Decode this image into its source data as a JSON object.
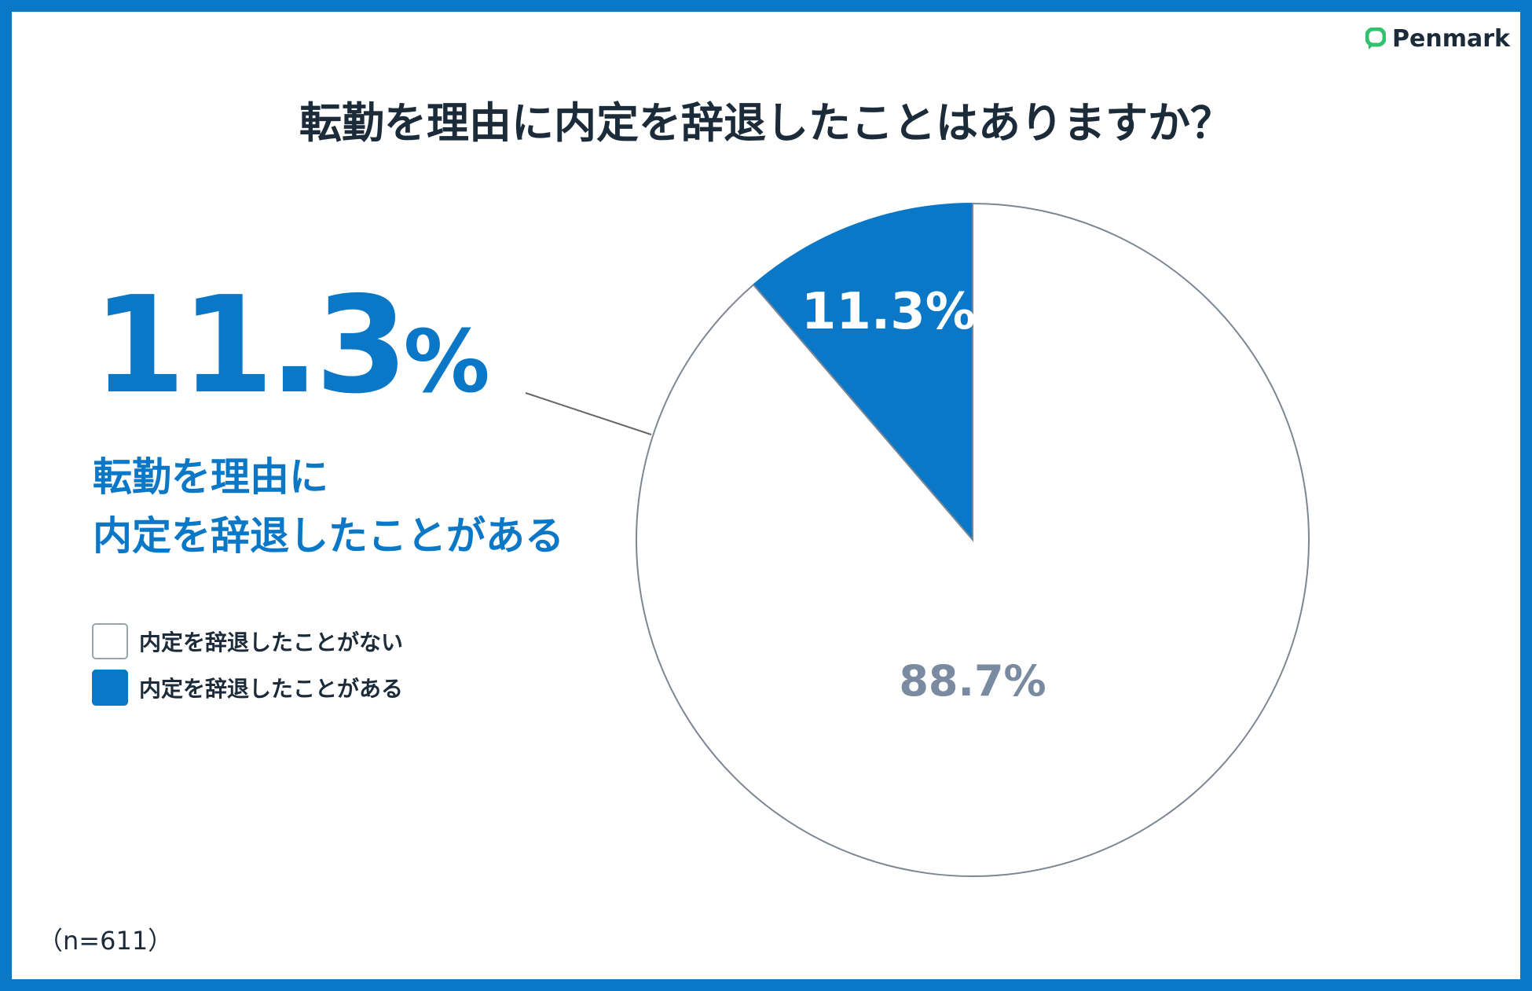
{
  "title": "転勤を理由に内定を辞退したことはありますか？",
  "logo": {
    "text": "Penmark",
    "icon": "speech-bubble-icon",
    "color": "#2ec46c"
  },
  "highlight": {
    "value": "11.3",
    "unit": "%",
    "line1": "転勤を理由に",
    "line2": "内定を辞退したことがある"
  },
  "sample": "（n=611）",
  "colors": {
    "accent": "#0a78c6",
    "text": "#1c2b39",
    "muted": "#7a8aa0"
  },
  "chart_data": {
    "type": "pie",
    "start": "12 o'clock, counter-clockwise for 11.3% slice",
    "slices": [
      {
        "name": "内定を辞退したことがある",
        "value": 11.3,
        "label": "11.3%",
        "color": "#0a78c6"
      },
      {
        "name": "内定を辞退したことがない",
        "value": 88.7,
        "label": "88.7%",
        "color": "#ffffff"
      }
    ],
    "legend": [
      "内定を辞退したことがない",
      "内定を辞退したことがある"
    ],
    "legend_placement": "left"
  }
}
